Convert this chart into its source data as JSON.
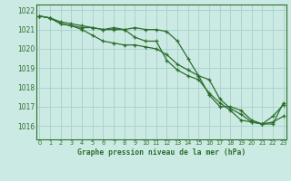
{
  "title": "Graphe pression niveau de la mer (hPa)",
  "background_color": "#cceae4",
  "grid_color": "#aad4cc",
  "line_color": "#2d6e2d",
  "x_ticks": [
    0,
    1,
    2,
    3,
    4,
    5,
    6,
    7,
    8,
    9,
    10,
    11,
    12,
    13,
    14,
    15,
    16,
    17,
    18,
    19,
    20,
    21,
    22,
    23
  ],
  "ylim": [
    1015.3,
    1022.3
  ],
  "yticks": [
    1016,
    1017,
    1018,
    1019,
    1020,
    1021,
    1022
  ],
  "series": [
    [
      1021.7,
      1021.6,
      1021.4,
      1021.3,
      1021.2,
      1021.1,
      1021.0,
      1021.1,
      1021.0,
      1021.1,
      1021.0,
      1021.0,
      1020.9,
      1020.4,
      1019.5,
      1018.6,
      1017.6,
      1017.0,
      1017.0,
      1016.8,
      1016.3,
      1016.1,
      1016.5,
      1017.1
    ],
    [
      1021.7,
      1021.6,
      1021.3,
      1021.2,
      1021.0,
      1020.7,
      1020.4,
      1020.3,
      1020.2,
      1020.2,
      1020.1,
      1020.0,
      1019.7,
      1019.2,
      1018.9,
      1018.6,
      1018.4,
      1017.4,
      1016.9,
      1016.6,
      1016.2,
      1016.1,
      1016.2,
      1016.5
    ],
    [
      1021.7,
      1021.6,
      1021.3,
      1021.2,
      1021.1,
      1021.1,
      1021.0,
      1021.0,
      1021.0,
      1020.6,
      1020.4,
      1020.4,
      1019.4,
      1018.9,
      1018.6,
      1018.4,
      1017.7,
      1017.2,
      1016.8,
      1016.3,
      1016.2,
      1016.1,
      1016.1,
      1017.2
    ]
  ]
}
